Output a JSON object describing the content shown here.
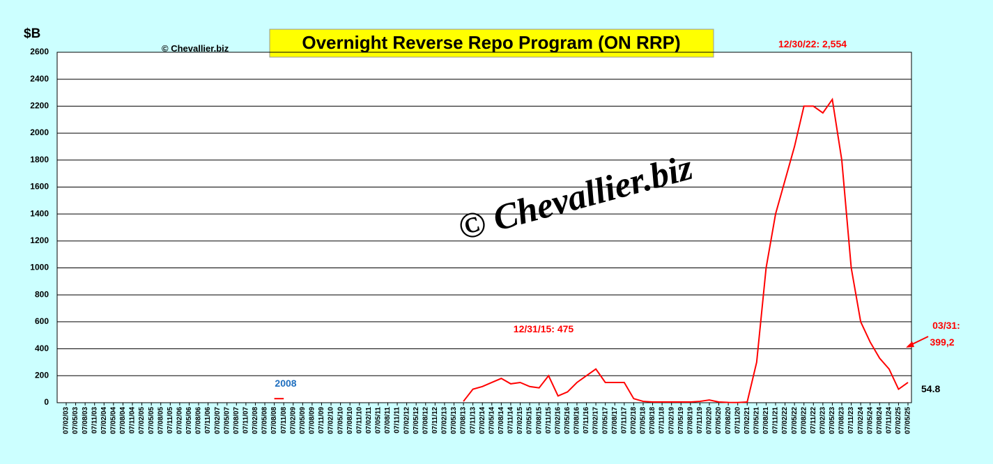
{
  "chart_data": {
    "type": "line",
    "title": "Overnight Reverse Repo Program (ON RRP)",
    "y_label": "$B",
    "source": "© Chevallier.biz",
    "watermark": "© Chevallier.biz",
    "categories": [
      "07/02/03",
      "07/05/03",
      "07/08/03",
      "07/11/03",
      "07/02/04",
      "07/05/04",
      "07/08/04",
      "07/11/04",
      "07/02/05",
      "07/05/05",
      "07/08/05",
      "07/11/05",
      "07/02/06",
      "07/05/06",
      "07/08/06",
      "07/11/06",
      "07/02/07",
      "07/05/07",
      "07/08/07",
      "07/11/07",
      "07/02/08",
      "07/05/08",
      "07/08/08",
      "07/11/08",
      "07/02/09",
      "07/05/09",
      "07/08/09",
      "07/11/09",
      "07/02/10",
      "07/05/10",
      "07/08/10",
      "07/11/10",
      "07/02/11",
      "07/05/11",
      "07/08/11",
      "07/11/11",
      "07/02/12",
      "07/05/12",
      "07/08/12",
      "07/11/12",
      "07/02/13",
      "07/05/13",
      "07/08/13",
      "07/11/13",
      "07/02/14",
      "07/05/14",
      "07/08/14",
      "07/11/14",
      "07/02/15",
      "07/05/15",
      "07/08/15",
      "07/11/15",
      "07/02/16",
      "07/05/16",
      "07/08/16",
      "07/11/16",
      "07/02/17",
      "07/05/17",
      "07/08/17",
      "07/11/17",
      "07/02/18",
      "07/05/18",
      "07/08/18",
      "07/11/18",
      "07/02/19",
      "07/05/19",
      "07/08/19",
      "07/11/19",
      "07/02/20",
      "07/05/20",
      "07/08/20",
      "07/11/20",
      "07/02/21",
      "07/05/21",
      "07/08/21",
      "07/11/21",
      "07/02/22",
      "07/05/22",
      "07/08/22",
      "07/11/22",
      "07/02/23",
      "07/05/23",
      "07/08/23",
      "07/11/23",
      "07/02/24",
      "07/05/24",
      "07/08/24",
      "07/11/24",
      "07/02/25",
      "07/05/25"
    ],
    "series": [
      {
        "name": "ON RRP",
        "color": "#ff0000",
        "values": [
          null,
          null,
          null,
          null,
          null,
          null,
          null,
          null,
          null,
          null,
          null,
          null,
          null,
          null,
          null,
          null,
          null,
          null,
          null,
          null,
          null,
          null,
          30,
          30,
          null,
          null,
          null,
          null,
          null,
          null,
          null,
          null,
          null,
          null,
          null,
          null,
          null,
          null,
          null,
          null,
          null,
          null,
          10,
          100,
          120,
          150,
          180,
          140,
          150,
          120,
          110,
          200,
          50,
          80,
          150,
          200,
          250,
          150,
          150,
          150,
          30,
          10,
          5,
          5,
          5,
          5,
          5,
          10,
          20,
          5,
          2,
          1,
          5,
          300,
          1000,
          1400,
          1650,
          1900,
          2200,
          2200,
          2150,
          2250,
          1800,
          1000,
          600,
          450,
          330,
          250,
          100,
          150
        ]
      }
    ],
    "ylim": [
      0,
      2600
    ],
    "yticks": [
      0,
      200,
      400,
      600,
      800,
      1000,
      1200,
      1400,
      1600,
      1800,
      2000,
      2200,
      2400,
      2600
    ],
    "grid": true,
    "annotations": [
      {
        "text": "12/30/22: 2,554",
        "color": "#ff0000"
      },
      {
        "text": "12/31/15: 475",
        "color": "#ff0000"
      },
      {
        "text": "2008",
        "color": "#1f6fbf"
      },
      {
        "text": "03/31:",
        "color": "#ff0000"
      },
      {
        "text": "399,2",
        "color": "#ff0000"
      },
      {
        "text": "54.8",
        "color": "#000000"
      }
    ]
  }
}
